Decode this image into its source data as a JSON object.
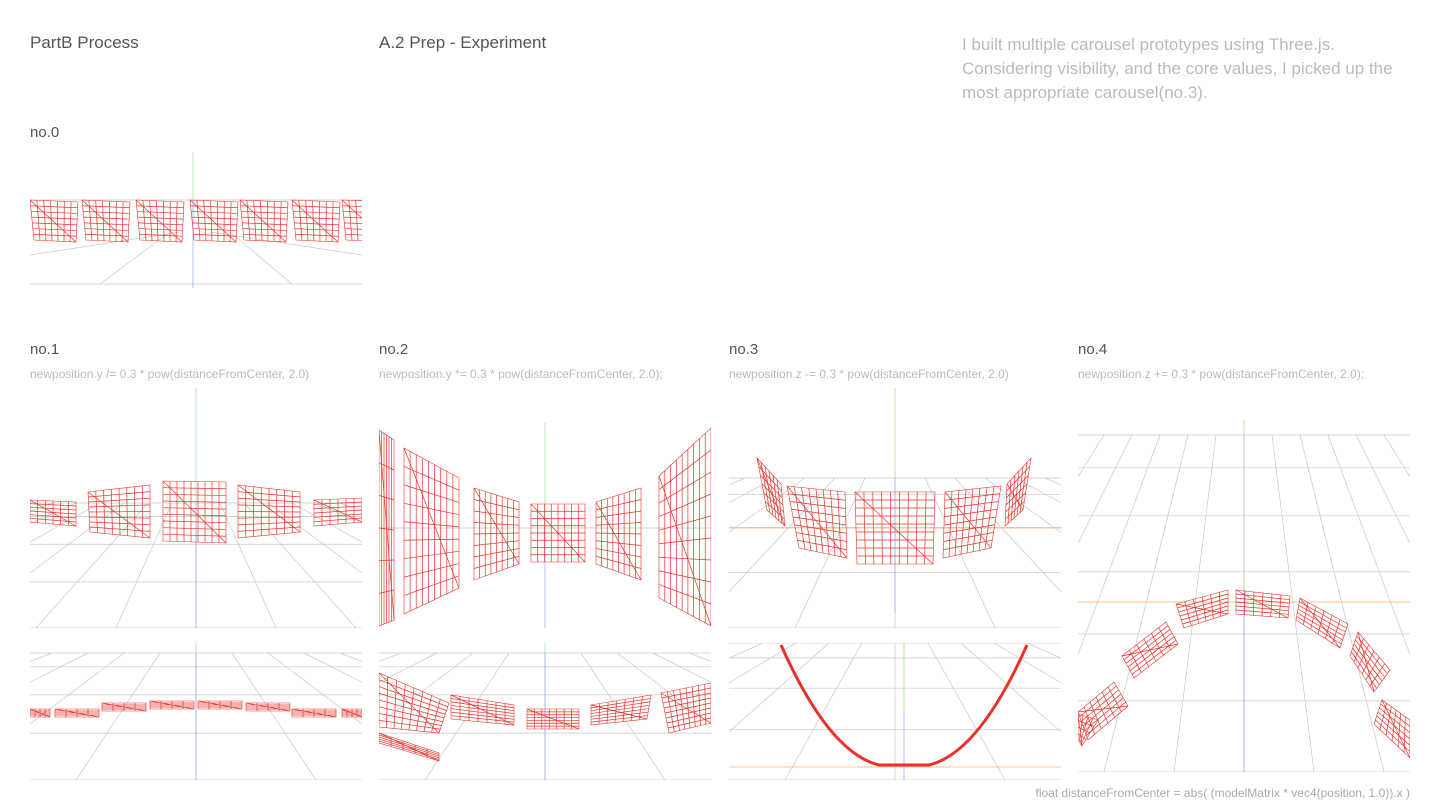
{
  "header": {
    "section_title": "PartB Process",
    "subtitle": "A.2 Prep - Experiment",
    "description": "I built multiple carousel prototypes using Three.js. Considering visibility, and the core values, I picked up the most appropriate carousel(no.3)."
  },
  "experiments": [
    {
      "label": "no.0",
      "formula": ""
    },
    {
      "label": "no.1",
      "formula": "newposition.y /= 0.3 * pow(distanceFromCenter, 2.0)"
    },
    {
      "label": "no.2",
      "formula": "newposition.y *= 0.3 * pow(distanceFromCenter, 2.0);"
    },
    {
      "label": "no.3",
      "formula": "newposition.z -= 0.3 * pow(distanceFromCenter, 2.0)"
    },
    {
      "label": "no.4",
      "formula": "newposition.z += 0.3 * pow(distanceFromCenter, 2.0);"
    }
  ],
  "footer": {
    "code": "float distanceFromCenter = abs( (modelMatrix * vec4(position, 1.0)).x )"
  },
  "colors": {
    "mesh": "#e8322a",
    "grid": "#c8c8c8",
    "axis_y": "#9fd88a",
    "axis_z": "#8fa8f0",
    "axis_x": "#f5b070"
  }
}
